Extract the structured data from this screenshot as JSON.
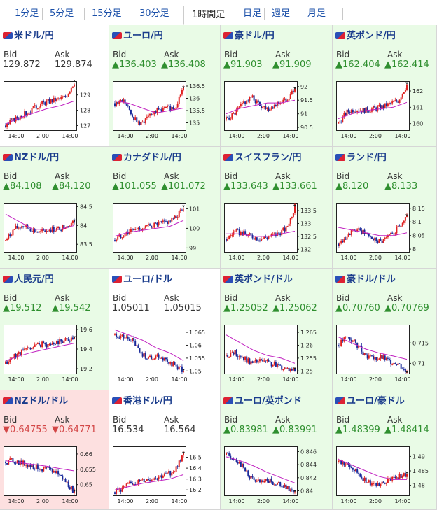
{
  "tabs": [
    {
      "label": "1分足",
      "active": false
    },
    {
      "label": "5分足",
      "active": false
    },
    {
      "label": "15分足",
      "active": false
    },
    {
      "label": "30分足",
      "active": false
    },
    {
      "label": "1時間足",
      "active": true
    },
    {
      "label": "日足",
      "active": false
    },
    {
      "label": "週足",
      "active": false
    },
    {
      "label": "月足",
      "active": false
    }
  ],
  "labels": {
    "bid": "Bid",
    "ask": "Ask"
  },
  "colors": {
    "up_bg": "#e9fbe6",
    "down_bg": "#fde0e0",
    "up_text": "#2f8f2f",
    "down_text": "#d34646",
    "title": "#1a3c8c",
    "candle_up": "#e02020",
    "candle_down": "#1a2a9a",
    "ma": "#c020c0"
  },
  "pairs": [
    {
      "name": "米ドル/円",
      "state": "neutral",
      "dir": "flat",
      "bid": "129.872",
      "ask": "129.874",
      "chart_data": {
        "type": "candlestick",
        "x_ticks": [
          "14:00",
          "2:00",
          "14:00"
        ],
        "y_ticks": [
          "129",
          "128",
          "127"
        ],
        "ylim": [
          126.7,
          129.9
        ],
        "trend": [
          127.0,
          127.4,
          127.7,
          128.0,
          128.4,
          128.6,
          128.7,
          128.9,
          129.87
        ],
        "ma": [
          127.1,
          127.5,
          127.8,
          128.1,
          128.3,
          128.6
        ]
      }
    },
    {
      "name": "ユーロ/円",
      "state": "up",
      "dir": "up",
      "bid": "136.403",
      "ask": "136.408",
      "chart_data": {
        "type": "candlestick",
        "x_ticks": [
          "14:00",
          "2:00",
          "14:00"
        ],
        "y_ticks": [
          "136.5",
          "136",
          "135.5",
          "135"
        ],
        "ylim": [
          134.7,
          136.7
        ],
        "trend": [
          135.8,
          135.9,
          135.3,
          134.9,
          135.4,
          135.5,
          135.6,
          135.6,
          136.4
        ],
        "ma": [
          135.9,
          135.8,
          135.6,
          135.4,
          135.5,
          135.6
        ]
      }
    },
    {
      "name": "豪ドル/円",
      "state": "up",
      "dir": "up",
      "bid": "91.903",
      "ask": "91.909",
      "chart_data": {
        "type": "candlestick",
        "x_ticks": [
          "14:00",
          "2:00",
          "14:00"
        ],
        "y_ticks": [
          "92",
          "91.5",
          "91",
          "90.5"
        ],
        "ylim": [
          90.4,
          92.2
        ],
        "trend": [
          90.8,
          91.0,
          91.4,
          91.6,
          91.3,
          91.2,
          91.4,
          91.5,
          91.9
        ],
        "ma": [
          91.0,
          91.2,
          91.3,
          91.4,
          91.4,
          91.5
        ]
      }
    },
    {
      "name": "英ポンド/円",
      "state": "up",
      "dir": "up",
      "bid": "162.404",
      "ask": "162.414",
      "chart_data": {
        "type": "candlestick",
        "x_ticks": [
          "14:00",
          "2:00",
          "14:00"
        ],
        "y_ticks": [
          "162",
          "161",
          "160"
        ],
        "ylim": [
          159.6,
          162.6
        ],
        "trend": [
          160.0,
          160.7,
          160.9,
          160.8,
          160.9,
          161.0,
          161.2,
          161.4,
          162.4
        ],
        "ma": [
          160.3,
          160.6,
          160.8,
          160.9,
          161.0,
          161.3
        ]
      }
    },
    {
      "name": "NZドル/円",
      "state": "up",
      "dir": "up",
      "bid": "84.108",
      "ask": "84.120",
      "chart_data": {
        "type": "candlestick",
        "x_ticks": [
          "14:00",
          "2:00",
          "14:00"
        ],
        "y_ticks": [
          "84.5",
          "84",
          "83.5"
        ],
        "ylim": [
          83.3,
          84.6
        ],
        "trend": [
          83.6,
          83.9,
          84.0,
          83.9,
          83.8,
          83.9,
          83.9,
          84.0,
          84.1
        ],
        "ma": [
          84.3,
          84.1,
          83.9,
          83.9,
          83.9,
          84.0
        ]
      }
    },
    {
      "name": "カナダドル/円",
      "state": "up",
      "dir": "up",
      "bid": "101.055",
      "ask": "101.072",
      "chart_data": {
        "type": "candlestick",
        "x_ticks": [
          "14:00",
          "2:00",
          "14:00"
        ],
        "y_ticks": [
          "101",
          "100",
          "99"
        ],
        "ylim": [
          98.8,
          101.3
        ],
        "trend": [
          99.4,
          99.7,
          99.9,
          100.0,
          100.1,
          100.2,
          100.3,
          100.5,
          101.06
        ],
        "ma": [
          99.6,
          99.8,
          99.9,
          100.0,
          100.1,
          100.4
        ]
      }
    },
    {
      "name": "スイスフラン/円",
      "state": "up",
      "dir": "up",
      "bid": "133.643",
      "ask": "133.661",
      "chart_data": {
        "type": "candlestick",
        "x_ticks": [
          "14:00",
          "2:00",
          "14:00"
        ],
        "y_ticks": [
          "133.5",
          "133",
          "132.5",
          "132"
        ],
        "ylim": [
          131.9,
          133.8
        ],
        "trend": [
          132.4,
          132.7,
          132.6,
          132.5,
          132.4,
          132.5,
          132.6,
          132.8,
          133.64
        ],
        "ma": [
          132.6,
          132.6,
          132.5,
          132.5,
          132.6,
          132.7
        ]
      }
    },
    {
      "name": "ランド/円",
      "state": "up",
      "dir": "up",
      "bid": "8.120",
      "ask": "8.133",
      "chart_data": {
        "type": "candlestick",
        "x_ticks": [
          "14:00",
          "2:00",
          "14:00"
        ],
        "y_ticks": [
          "8.15",
          "8.1",
          "8.05",
          "8"
        ],
        "ylim": [
          7.99,
          8.17
        ],
        "trend": [
          8.02,
          8.05,
          8.07,
          8.06,
          8.04,
          8.03,
          8.05,
          8.08,
          8.12
        ],
        "ma": [
          8.08,
          8.07,
          8.06,
          8.05,
          8.05,
          8.06
        ]
      }
    },
    {
      "name": "人民元/円",
      "state": "up",
      "dir": "up",
      "bid": "19.512",
      "ask": "19.542",
      "chart_data": {
        "type": "candlestick",
        "x_ticks": [
          "14:00",
          "2:00",
          "14:00"
        ],
        "y_ticks": [
          "19.6",
          "19.4",
          "19.2"
        ],
        "ylim": [
          19.15,
          19.65
        ],
        "trend": [
          19.25,
          19.33,
          19.38,
          19.42,
          19.45,
          19.44,
          19.47,
          19.5,
          19.51
        ],
        "ma": [
          19.28,
          19.33,
          19.37,
          19.4,
          19.43,
          19.46
        ]
      }
    },
    {
      "name": "ユーロ/ドル",
      "state": "neutral",
      "dir": "flat",
      "bid": "1.05011",
      "ask": "1.05015",
      "chart_data": {
        "type": "candlestick",
        "x_ticks": [
          "14:00",
          "2:00",
          "14:00"
        ],
        "y_ticks": [
          "1.065",
          "1.06",
          "1.055",
          "1.05"
        ],
        "ylim": [
          1.049,
          1.068
        ],
        "trend": [
          1.064,
          1.063,
          1.062,
          1.057,
          1.055,
          1.056,
          1.054,
          1.052,
          1.05
        ],
        "ma": [
          1.066,
          1.064,
          1.062,
          1.059,
          1.057,
          1.054
        ]
      }
    },
    {
      "name": "英ポンド/ドル",
      "state": "up",
      "dir": "up",
      "bid": "1.25052",
      "ask": "1.25062",
      "chart_data": {
        "type": "candlestick",
        "x_ticks": [
          "14:00",
          "2:00",
          "14:00"
        ],
        "y_ticks": [
          "1.265",
          "1.26",
          "1.255",
          "1.25"
        ],
        "ylim": [
          1.249,
          1.268
        ],
        "trend": [
          1.256,
          1.257,
          1.255,
          1.253,
          1.254,
          1.253,
          1.252,
          1.251,
          1.2505
        ],
        "ma": [
          1.264,
          1.261,
          1.258,
          1.256,
          1.255,
          1.253
        ]
      }
    },
    {
      "name": "豪ドル/ドル",
      "state": "up",
      "dir": "up",
      "bid": "0.70760",
      "ask": "0.70769",
      "chart_data": {
        "type": "candlestick",
        "x_ticks": [
          "14:00",
          "2:00",
          "14:00"
        ],
        "y_ticks": [
          "0.715",
          "0.71"
        ],
        "ylim": [
          0.7075,
          0.7195
        ],
        "trend": [
          0.7145,
          0.7165,
          0.715,
          0.7125,
          0.711,
          0.7115,
          0.7105,
          0.71,
          0.7076
        ],
        "ma": [
          0.7165,
          0.715,
          0.7135,
          0.7125,
          0.7118,
          0.711
        ]
      }
    },
    {
      "name": "NZドル/ドル",
      "state": "down",
      "dir": "down",
      "bid": "0.64755",
      "ask": "0.64771",
      "chart_data": {
        "type": "candlestick",
        "x_ticks": [
          "14:00",
          "2:00",
          "14:00"
        ],
        "y_ticks": [
          "0.66",
          "0.655",
          "0.65"
        ],
        "ylim": [
          0.6465,
          0.6625
        ],
        "trend": [
          0.6575,
          0.6578,
          0.657,
          0.656,
          0.6555,
          0.6548,
          0.654,
          0.651,
          0.6476
        ],
        "ma": [
          0.6578,
          0.6572,
          0.6566,
          0.656,
          0.6552,
          0.6545
        ]
      }
    },
    {
      "name": "香港ドル/円",
      "state": "neutral",
      "dir": "flat",
      "bid": "16.534",
      "ask": "16.564",
      "chart_data": {
        "type": "candlestick",
        "x_ticks": [
          "14:00",
          "2:00",
          "14:00"
        ],
        "y_ticks": [
          "16.5",
          "16.4",
          "16.3",
          "16.2"
        ],
        "ylim": [
          16.15,
          16.6
        ],
        "trend": [
          16.18,
          16.22,
          16.26,
          16.28,
          16.3,
          16.32,
          16.34,
          16.38,
          16.53
        ],
        "ma": [
          16.2,
          16.23,
          16.26,
          16.28,
          16.3,
          16.34
        ]
      }
    },
    {
      "name": "ユーロ/英ポンド",
      "state": "up",
      "dir": "up",
      "bid": "0.83981",
      "ask": "0.83991",
      "chart_data": {
        "type": "candlestick",
        "x_ticks": [
          "14:00",
          "2:00",
          "14:00"
        ],
        "y_ticks": [
          "0.846",
          "0.844",
          "0.842",
          "0.84"
        ],
        "ylim": [
          0.8393,
          0.8468
        ],
        "trend": [
          0.8455,
          0.845,
          0.8435,
          0.8418,
          0.8412,
          0.8415,
          0.841,
          0.8405,
          0.8398
        ],
        "ma": [
          0.8452,
          0.8446,
          0.8438,
          0.8428,
          0.842,
          0.8412
        ]
      }
    },
    {
      "name": "ユーロ/豪ドル",
      "state": "up",
      "dir": "up",
      "bid": "1.48399",
      "ask": "1.48414",
      "chart_data": {
        "type": "candlestick",
        "x_ticks": [
          "14:00",
          "2:00",
          "14:00"
        ],
        "y_ticks": [
          "1.49",
          "1.485",
          "1.48"
        ],
        "ylim": [
          1.4765,
          1.4935
        ],
        "trend": [
          1.488,
          1.487,
          1.485,
          1.482,
          1.48,
          1.481,
          1.482,
          1.483,
          1.484
        ],
        "ma": [
          1.489,
          1.487,
          1.485,
          1.483,
          1.482,
          1.482
        ]
      }
    }
  ]
}
